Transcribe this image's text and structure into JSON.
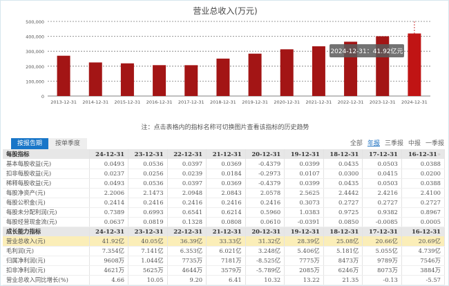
{
  "chart_data": {
    "type": "bar",
    "title": "营业总收入(万元)",
    "categories": [
      "2013-12-31",
      "2014-12-31",
      "2015-12-31",
      "2016-12-31",
      "2017-12-31",
      "2018-12-31",
      "2019-12-31",
      "2020-12-31",
      "2021-12-31",
      "2022-12-31",
      "2023-12-31",
      "2024-12-31"
    ],
    "values": [
      270000,
      225000,
      219000,
      206900,
      206600,
      250800,
      283900,
      313200,
      333300,
      363900,
      400500,
      419200
    ],
    "ylim": [
      0,
      500000
    ],
    "yticks": [
      "0",
      "100,000",
      "200,000",
      "300,000",
      "400,000",
      "500,000"
    ],
    "grid": true,
    "tooltip": "2024-12-31：41.92亿元",
    "bar_color": "#a31515",
    "highlight_color": "#c01414"
  },
  "note": "注：点击表格内的指标名称可切换图片查看该指标的历史趋势",
  "tabs": [
    "按报告期",
    "按单季度"
  ],
  "filters": [
    "全部",
    "年报",
    "三季报",
    "中报",
    "一季报"
  ],
  "more_icon": "»",
  "per_share": {
    "title": "每股指标",
    "cols": [
      "24-12-31",
      "23-12-31",
      "22-12-31",
      "21-12-31",
      "20-12-31",
      "19-12-31",
      "18-12-31",
      "17-12-31",
      "16-12-31"
    ],
    "rows": [
      [
        "基本每股收益(元)",
        "0.0493",
        "0.0536",
        "0.0397",
        "0.0369",
        "-0.4379",
        "0.0399",
        "0.0435",
        "0.0503",
        "0.0388"
      ],
      [
        "扣非每股收益(元)",
        "0.0237",
        "0.0256",
        "0.0239",
        "0.0184",
        "-0.2973",
        "0.0107",
        "0.0300",
        "0.0415",
        "0.0200"
      ],
      [
        "稀释每股收益(元)",
        "0.0493",
        "0.0536",
        "0.0397",
        "0.0369",
        "-0.4379",
        "0.0399",
        "0.0435",
        "0.0503",
        "0.0388"
      ],
      [
        "每股净资产(元)",
        "2.2006",
        "2.1473",
        "2.0948",
        "2.0843",
        "2.0578",
        "2.5625",
        "2.4442",
        "2.4216",
        "2.4100"
      ],
      [
        "每股公积金(元)",
        "0.2414",
        "0.2416",
        "0.2416",
        "0.2416",
        "0.2416",
        "0.3073",
        "0.2727",
        "0.2727",
        "0.2727"
      ],
      [
        "每股未分配利润(元)",
        "0.7389",
        "0.6993",
        "0.6541",
        "0.6214",
        "0.5960",
        "1.0383",
        "0.9725",
        "0.9382",
        "0.8967"
      ],
      [
        "每股经营现金流(元)",
        "0.0637",
        "0.0819",
        "0.1328",
        "0.0808",
        "0.0610",
        "-0.0391",
        "0.0850",
        "-0.0085",
        "0.0005"
      ]
    ]
  },
  "growth": {
    "title": "成长能力指标",
    "cols": [
      "24-12-31",
      "23-12-31",
      "22-12-31",
      "21-12-31",
      "20-12-31",
      "19-12-31",
      "18-12-31",
      "17-12-31",
      "16-12-31"
    ],
    "rows": [
      [
        "营业总收入(元)",
        "41.92亿",
        "40.05亿",
        "36.39亿",
        "33.33亿",
        "31.32亿",
        "28.39亿",
        "25.08亿",
        "20.66亿",
        "20.69亿"
      ],
      [
        "毛利润(元)",
        "7.354亿",
        "7.141亿",
        "6.353亿",
        "6.021亿",
        "3.248亿",
        "5.406亿",
        "5.181亿",
        "5.055亿",
        "4.739亿"
      ],
      [
        "归属净利润(元)",
        "9608万",
        "1.044亿",
        "7735万",
        "7181万",
        "-8.525亿",
        "7775万",
        "8473万",
        "9789万",
        "7546万"
      ],
      [
        "扣非净利润(元)",
        "4621万",
        "5625万",
        "4644万",
        "3579万",
        "-5.789亿",
        "2085万",
        "6246万",
        "8073万",
        "3884万"
      ],
      [
        "营业总收入同比增长(%)",
        "4.66",
        "10.05",
        "9.20",
        "6.41",
        "10.32",
        "13.22",
        "21.35",
        "-0.13",
        "-5.57"
      ]
    ]
  }
}
